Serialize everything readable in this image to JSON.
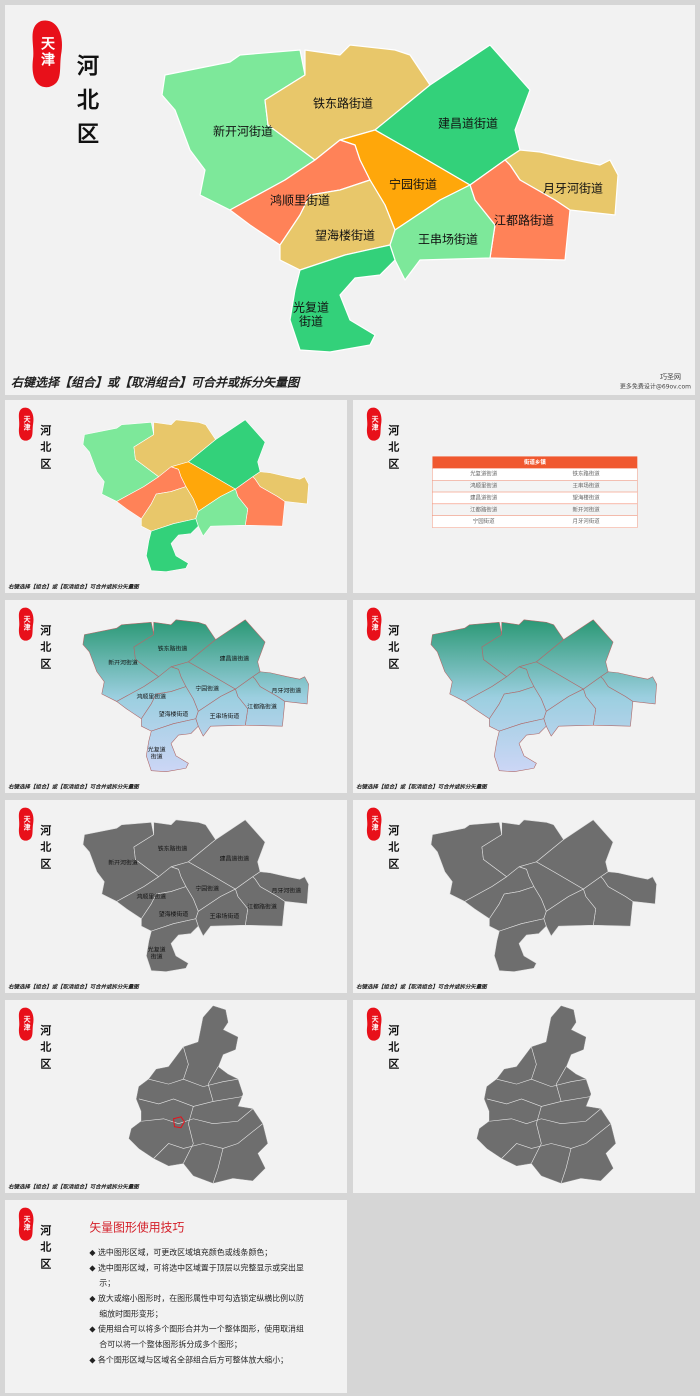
{
  "badge": "天津",
  "district": "河北区",
  "caption": "右键选择【组合】或【取消组合】可合并或拆分矢量图",
  "logo": "巧圣网",
  "logo_sub": "更多免费设计@69ov.com",
  "regions": [
    {
      "label": [
        "新开河街道"
      ],
      "color": "#7de89a"
    },
    {
      "label": [
        "铁东路街道"
      ],
      "color": "#e8c76a"
    },
    {
      "label": [
        "建昌道街道"
      ],
      "color": "#33d17a"
    },
    {
      "label": [
        "宁园街道"
      ],
      "color": "#ffa70a"
    },
    {
      "label": [
        "鸿顺里街道"
      ],
      "color": "#ff8258"
    },
    {
      "label": [
        "望海楼街道"
      ],
      "color": "#e8c76a"
    },
    {
      "label": [
        "月牙河街道"
      ],
      "color": "#e8c76a"
    },
    {
      "label": [
        "江都路街道"
      ],
      "color": "#ff8258"
    },
    {
      "label": [
        "王串场街道"
      ],
      "color": "#7de89a"
    },
    {
      "label": [
        "光复道",
        "街道"
      ],
      "color": "#33d17a"
    }
  ],
  "table": {
    "header": "街道乡镇",
    "rows": [
      [
        "光复道街道",
        "铁东路街道"
      ],
      [
        "鸿顺里街道",
        "王串场街道"
      ],
      [
        "建昌道街道",
        "望海楼街道"
      ],
      [
        "江都路街道",
        "新开河街道"
      ],
      [
        "宁园街道",
        "月牙河街道"
      ]
    ]
  },
  "tips": {
    "title": "矢量图形使用技巧",
    "items": [
      "选中图形区域，可更改区域填充颜色或线条颜色；",
      "选中图形区域，可将选中区域置于顶层以完整显示或突出显示；",
      "放大或缩小图形时，在图形属性中可勾选锁定纵横比例以防缩放时图形变形；",
      "使用组合可以将多个图形合并为一个整体图形，使用取消组合可以将一个整体图形拆分成多个图形；",
      "各个图形区域与区域名全部组合后方可整体放大缩小；"
    ]
  }
}
